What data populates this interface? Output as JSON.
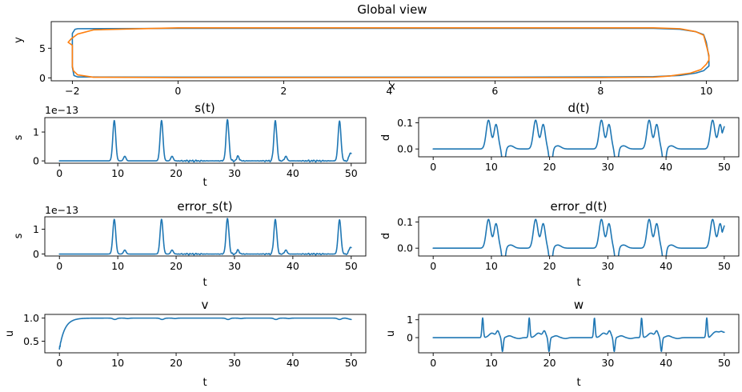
{
  "colors": {
    "series1": "#1f77b4",
    "series2": "#ff7f0e"
  },
  "chart_data": [
    {
      "id": "global",
      "type": "line",
      "title": "Global view",
      "xlabel": "x",
      "ylabel": "y",
      "xlim": [
        -2.4,
        10.6
      ],
      "ylim": [
        -0.5,
        9.5
      ],
      "xticks": [
        -2,
        0,
        2,
        4,
        6,
        8,
        10
      ],
      "yticks": [
        0,
        5
      ],
      "grid": false,
      "series": [
        {
          "color": "#1f77b4",
          "x": [
            -2.0,
            -1.95,
            -1.9,
            0,
            2,
            4,
            6,
            8,
            9.0,
            9.5,
            9.8,
            9.95,
            10.0,
            10.05,
            10.05,
            10.0,
            9.95,
            9.8,
            9.5,
            9,
            8,
            6,
            4,
            2,
            0,
            -1.9,
            -1.97,
            -2.0
          ],
          "y": [
            7.5,
            8.2,
            8.3,
            8.35,
            8.35,
            8.35,
            8.35,
            8.35,
            8.35,
            8.2,
            7.8,
            7.3,
            6.0,
            3.5,
            2.0,
            1.6,
            1.2,
            0.8,
            0.4,
            0.2,
            0.15,
            0.12,
            0.12,
            0.12,
            0.12,
            0.15,
            0.4,
            1.8
          ]
        },
        {
          "color": "#ff7f0e",
          "x": [
            -2.0,
            -2.08,
            -2.02,
            -1.9,
            -1.6,
            0,
            2,
            4,
            6,
            8,
            9.0,
            9.5,
            9.8,
            9.95,
            10.0,
            10.05,
            10.05,
            10.0,
            9.9,
            9.7,
            9.3,
            9,
            8,
            6,
            4,
            2,
            0,
            -1.6,
            -1.9,
            -1.98,
            -2.0
          ],
          "y": [
            5.5,
            6.0,
            6.6,
            7.4,
            8.1,
            8.45,
            8.45,
            8.45,
            8.45,
            8.45,
            8.45,
            8.3,
            7.8,
            7.2,
            5.5,
            3.8,
            3.0,
            2.3,
            1.4,
            0.8,
            0.3,
            0.12,
            0.05,
            0.05,
            0.05,
            0.05,
            0.05,
            0.1,
            0.5,
            1.2,
            2.0
          ]
        }
      ]
    },
    {
      "id": "s",
      "type": "line",
      "title": "s(t)",
      "xlabel": "t",
      "ylabel": "s",
      "offset_text": "1e−13",
      "xlim": [
        -2.5,
        52.5
      ],
      "ylim": [
        -0.08,
        1.5
      ],
      "xticks": [
        0,
        10,
        20,
        30,
        40,
        50
      ],
      "yticks": [
        0,
        1
      ],
      "grid": false,
      "signal": {
        "kind": "spikes",
        "t_end": 50,
        "baseline": 0.0,
        "peaks": [
          {
            "t": 9.4,
            "h": 1.4
          },
          {
            "t": 17.5,
            "h": 1.4
          },
          {
            "t": 28.8,
            "h": 1.43
          },
          {
            "t": 37.0,
            "h": 1.4
          },
          {
            "t": 48.0,
            "h": 1.38
          }
        ],
        "noise_from": 19,
        "noise_amp": 0.04,
        "end_value": 0.15
      }
    },
    {
      "id": "d",
      "type": "line",
      "title": "d(t)",
      "xlabel": "",
      "ylabel": "d",
      "xlim": [
        -2.5,
        52.5
      ],
      "ylim": [
        -0.03,
        0.12
      ],
      "xticks": [
        0,
        10,
        20,
        30,
        40,
        50
      ],
      "yticks": [
        0.0,
        0.1
      ],
      "grid": false,
      "signal": {
        "kind": "pulses",
        "t_end": 50,
        "events": [
          9.5,
          17.6,
          28.9,
          37.1,
          48.0
        ],
        "amplitude": 0.11,
        "dip": -0.025,
        "end_value": 0.085
      }
    },
    {
      "id": "error_s",
      "type": "line",
      "title": "error_s(t)",
      "xlabel": "t",
      "ylabel": "s",
      "offset_text": "1e−13",
      "xlim": [
        -2.5,
        52.5
      ],
      "ylim": [
        -0.08,
        1.5
      ],
      "xticks": [
        0,
        10,
        20,
        30,
        40,
        50
      ],
      "yticks": [
        0,
        1
      ],
      "grid": false,
      "signal": {
        "kind": "spikes",
        "t_end": 50,
        "baseline": 0.0,
        "peaks": [
          {
            "t": 9.4,
            "h": 1.4
          },
          {
            "t": 17.5,
            "h": 1.4
          },
          {
            "t": 28.8,
            "h": 1.43
          },
          {
            "t": 37.0,
            "h": 1.4
          },
          {
            "t": 48.0,
            "h": 1.38
          }
        ],
        "noise_from": 19,
        "noise_amp": 0.04,
        "end_value": 0.15
      }
    },
    {
      "id": "error_d",
      "type": "line",
      "title": "error_d(t)",
      "xlabel": "t",
      "ylabel": "d",
      "xlim": [
        -2.5,
        52.5
      ],
      "ylim": [
        -0.03,
        0.12
      ],
      "xticks": [
        0,
        10,
        20,
        30,
        40,
        50
      ],
      "yticks": [
        0.0,
        0.1
      ],
      "grid": false,
      "signal": {
        "kind": "pulses",
        "t_end": 50,
        "events": [
          9.5,
          17.6,
          28.9,
          37.1,
          48.0
        ],
        "amplitude": 0.11,
        "dip": -0.025,
        "end_value": 0.085
      }
    },
    {
      "id": "v",
      "type": "line",
      "title": "v",
      "xlabel": "t",
      "ylabel": "u",
      "xlim": [
        -2.5,
        52.5
      ],
      "ylim": [
        0.25,
        1.08
      ],
      "xticks": [
        0,
        10,
        20,
        30,
        40,
        50
      ],
      "yticks": [
        0.5,
        1.0
      ],
      "grid": false,
      "signal": {
        "kind": "rise",
        "t_end": 50,
        "start": 0.33,
        "plateau": 1.0,
        "tau": 0.9,
        "events": [
          9.5,
          17.6,
          28.9,
          37.1,
          48.0
        ],
        "dip": 0.03,
        "end_value": 0.97
      }
    },
    {
      "id": "w",
      "type": "line",
      "title": "w",
      "xlabel": "t",
      "ylabel": "u",
      "xlim": [
        -2.5,
        52.5
      ],
      "ylim": [
        -0.85,
        1.3
      ],
      "xticks": [
        0,
        10,
        20,
        30,
        40,
        50
      ],
      "yticks": [
        0,
        1
      ],
      "grid": false,
      "signal": {
        "kind": "kicks",
        "t_end": 50,
        "events": [
          8.5,
          16.5,
          27.7,
          35.8,
          47.0
        ],
        "peak": 1.1,
        "trough": -0.6,
        "end_value": 0.3
      }
    }
  ]
}
